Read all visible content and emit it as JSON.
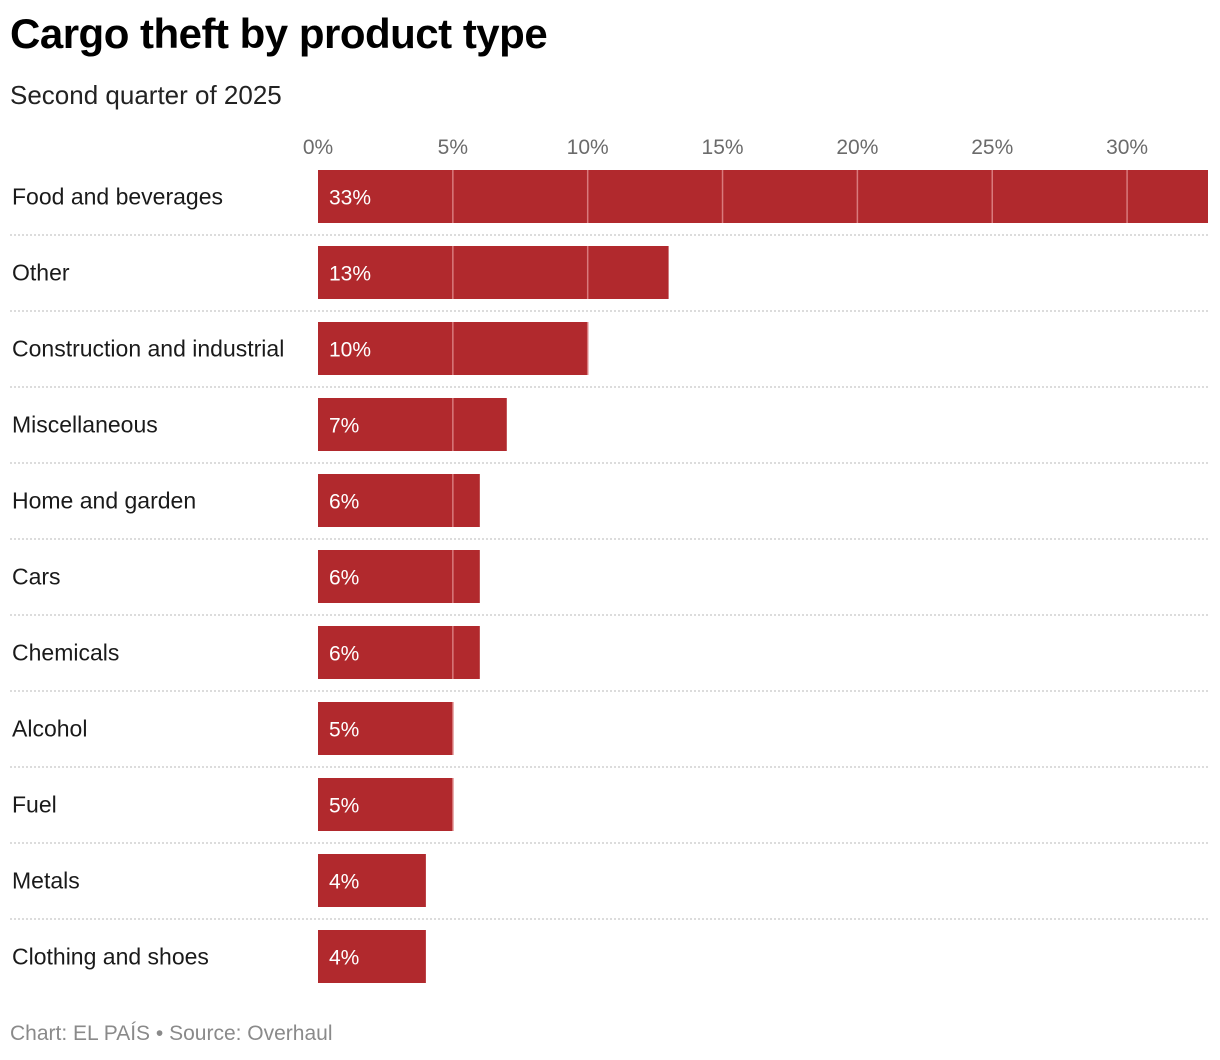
{
  "title": "Cargo theft by product type",
  "subtitle": "Second quarter of 2025",
  "footer": "Chart: EL PAÍS • Source: Overhaul",
  "colors": {
    "bar": "#b1292d",
    "gridline_on_bar": "#d97a7c",
    "separator": "#c8c8c8"
  },
  "chart_data": {
    "type": "bar",
    "orientation": "horizontal",
    "title": "Cargo theft by product type",
    "subtitle": "Second quarter of 2025",
    "categories": [
      "Food and beverages",
      "Other",
      "Construction and industrial",
      "Miscellaneous",
      "Home and garden",
      "Cars",
      "Chemicals",
      "Alcohol",
      "Fuel",
      "Metals",
      "Clothing and shoes"
    ],
    "values": [
      33,
      13,
      10,
      7,
      6,
      6,
      6,
      5,
      5,
      4,
      4
    ],
    "value_labels": [
      "33%",
      "13%",
      "10%",
      "7%",
      "6%",
      "6%",
      "6%",
      "5%",
      "5%",
      "4%",
      "4%"
    ],
    "xticks": [
      0,
      5,
      10,
      15,
      20,
      25,
      30
    ],
    "xtick_labels": [
      "0%",
      "5%",
      "10%",
      "15%",
      "20%",
      "25%",
      "30%"
    ],
    "xlim": [
      0,
      33
    ],
    "axis_position": "top",
    "grid": true,
    "legend": "none"
  }
}
